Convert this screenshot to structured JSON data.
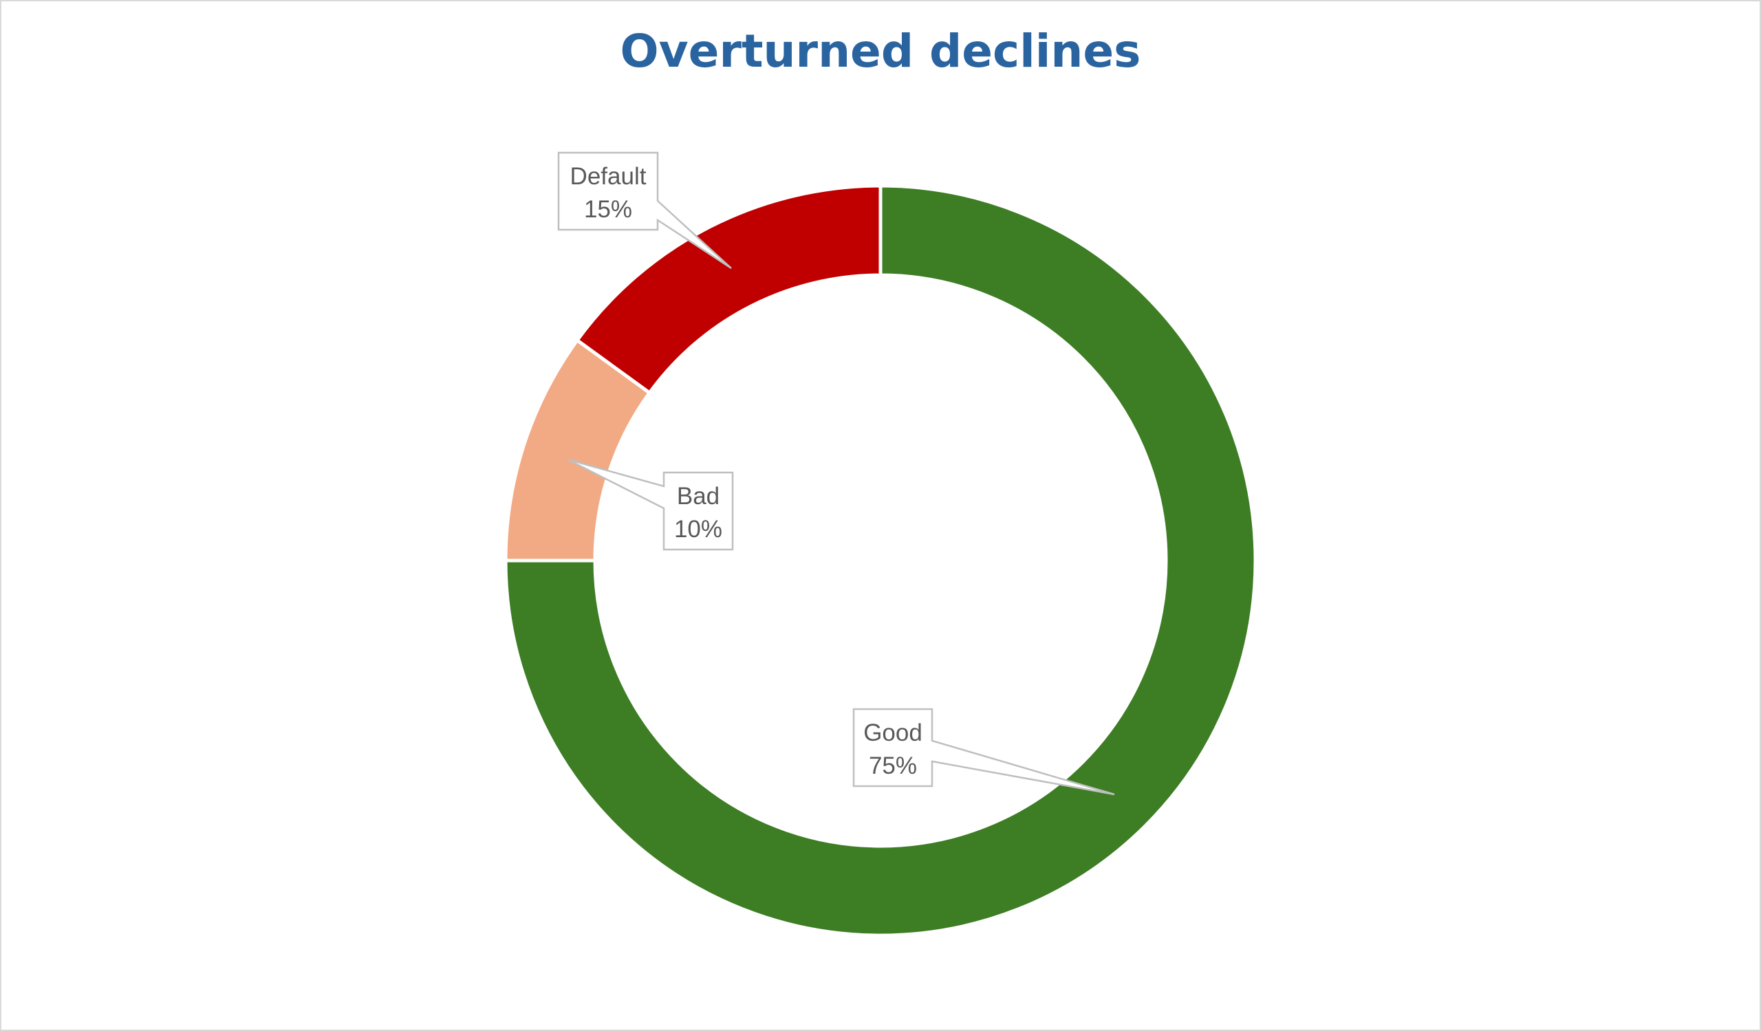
{
  "chart_data": {
    "type": "pie",
    "title": "Overturned declines",
    "donut": true,
    "slices": [
      {
        "label": "Good",
        "value": 75,
        "display": "75%",
        "color": "#3d7d24"
      },
      {
        "label": "Bad",
        "value": 10,
        "display": "10%",
        "color": "#f2aa84"
      },
      {
        "label": "Default",
        "value": 15,
        "display": "15%",
        "color": "#c00000"
      }
    ],
    "data_labels": "callout"
  }
}
